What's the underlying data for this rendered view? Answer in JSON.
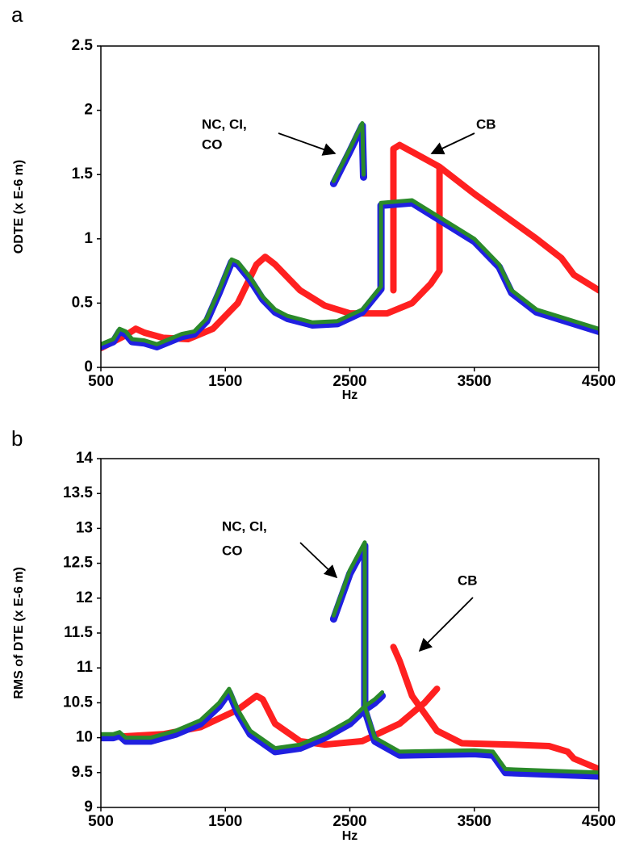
{
  "chart_data": [
    {
      "type": "line",
      "panel": "a",
      "ylabel": "ODTE (x E-6 m)",
      "xlabel": "Hz",
      "xlim": [
        500,
        4500
      ],
      "xticks": [
        500,
        1500,
        2500,
        3500,
        4500
      ],
      "ylim": [
        0,
        2.5
      ],
      "yticks": [
        0,
        0.5,
        1,
        1.5,
        2,
        2.5
      ],
      "annotations": [
        "NC, CI,",
        "CO",
        "CB"
      ],
      "series": [
        {
          "color": "#ff2020",
          "x": [
            500,
            700,
            780,
            850,
            1000,
            1200,
            1400,
            1600,
            1750,
            1820,
            1900,
            2100,
            2300,
            2500,
            2800,
            3000,
            3150,
            3220,
            3220,
            3500,
            4000,
            4200,
            4300,
            4500,
            null,
            2850,
            2850,
            2900,
            3220
          ],
          "values": [
            0.15,
            0.25,
            0.3,
            0.27,
            0.23,
            0.22,
            0.3,
            0.5,
            0.8,
            0.86,
            0.8,
            0.6,
            0.48,
            0.42,
            0.42,
            0.5,
            0.65,
            0.75,
            1.56,
            1.35,
            1.0,
            0.85,
            0.72,
            0.6,
            null,
            0.6,
            1.7,
            1.73,
            1.56
          ]
        },
        {
          "color": "#2020e0",
          "x": [
            500,
            600,
            650,
            700,
            750,
            850,
            950,
            1050,
            1150,
            1250,
            1350,
            1450,
            1550,
            1600,
            1700,
            1800,
            1900,
            2000,
            2200,
            2400,
            2600,
            2750,
            2750,
            3000,
            3500,
            3700,
            3800,
            4000,
            4500,
            null,
            2370,
            2500,
            2600,
            2610
          ],
          "values": [
            0.16,
            0.2,
            0.28,
            0.26,
            0.2,
            0.19,
            0.16,
            0.2,
            0.24,
            0.26,
            0.36,
            0.58,
            0.82,
            0.8,
            0.68,
            0.53,
            0.43,
            0.38,
            0.33,
            0.34,
            0.43,
            0.61,
            1.26,
            1.28,
            0.98,
            0.78,
            0.58,
            0.43,
            0.28,
            null,
            1.43,
            1.68,
            1.88,
            1.48
          ]
        },
        {
          "color": "#2a8a2a",
          "x": [
            500,
            600,
            650,
            700,
            750,
            850,
            950,
            1050,
            1150,
            1250,
            1350,
            1450,
            1550,
            1600,
            1700,
            1800,
            1900,
            2000,
            2200,
            2400,
            2600,
            2750,
            2750,
            3000,
            3500,
            3700,
            3800,
            4000,
            4500,
            null,
            2370,
            2500,
            2600,
            2610
          ],
          "values": [
            0.18,
            0.22,
            0.3,
            0.28,
            0.22,
            0.21,
            0.18,
            0.22,
            0.26,
            0.28,
            0.38,
            0.6,
            0.84,
            0.82,
            0.7,
            0.55,
            0.45,
            0.4,
            0.35,
            0.36,
            0.45,
            0.63,
            1.28,
            1.3,
            1.0,
            0.8,
            0.6,
            0.45,
            0.3,
            null,
            1.45,
            1.7,
            1.9,
            1.5
          ]
        }
      ]
    },
    {
      "type": "line",
      "panel": "b",
      "ylabel": "RMS of DTE (x E-6 m)",
      "xlabel": "Hz",
      "xlim": [
        500,
        4500
      ],
      "xticks": [
        500,
        1500,
        2500,
        3500,
        4500
      ],
      "ylim": [
        9,
        14
      ],
      "yticks": [
        9,
        9.5,
        10,
        10.5,
        11,
        11.5,
        12,
        12.5,
        13,
        13.5,
        14
      ],
      "annotations": [
        "NC, CI,",
        "CO",
        "CB"
      ],
      "series": [
        {
          "color": "#ff2020",
          "x": [
            500,
            700,
            1000,
            1300,
            1600,
            1750,
            1800,
            1900,
            2100,
            2300,
            2600,
            2900,
            3100,
            3200,
            null,
            2850,
            2900,
            3000,
            3200,
            3400,
            3800,
            4100,
            4250,
            4300,
            4500
          ],
          "values": [
            10.0,
            10.02,
            10.05,
            10.15,
            10.4,
            10.6,
            10.55,
            10.2,
            9.95,
            9.9,
            9.95,
            10.2,
            10.5,
            10.7,
            null,
            11.3,
            11.1,
            10.6,
            10.1,
            9.92,
            9.9,
            9.88,
            9.8,
            9.7,
            9.55
          ]
        },
        {
          "color": "#2020e0",
          "x": [
            500,
            600,
            650,
            700,
            900,
            1100,
            1300,
            1450,
            1530,
            1600,
            1700,
            1900,
            2100,
            2300,
            2500,
            2620,
            2700,
            2760,
            null,
            2370,
            2500,
            2620,
            2620,
            2700,
            2900,
            3500,
            3650,
            3750,
            4500
          ],
          "values": [
            10.0,
            10.0,
            10.03,
            9.95,
            9.95,
            10.05,
            10.2,
            10.45,
            10.65,
            10.35,
            10.05,
            9.8,
            9.85,
            10.0,
            10.2,
            10.4,
            10.5,
            10.6,
            null,
            11.7,
            12.35,
            12.75,
            10.4,
            9.95,
            9.75,
            9.77,
            9.75,
            9.5,
            9.45
          ]
        },
        {
          "color": "#2a8a2a",
          "x": [
            500,
            600,
            650,
            700,
            900,
            1100,
            1300,
            1450,
            1530,
            1600,
            1700,
            1900,
            2100,
            2300,
            2500,
            2620,
            2700,
            2760,
            null,
            2370,
            2500,
            2620,
            2620,
            2700,
            2900,
            3500,
            3650,
            3750,
            4500
          ],
          "values": [
            10.05,
            10.05,
            10.08,
            10.0,
            10.0,
            10.1,
            10.25,
            10.5,
            10.7,
            10.4,
            10.1,
            9.85,
            9.9,
            10.05,
            10.25,
            10.45,
            10.55,
            10.65,
            null,
            11.75,
            12.4,
            12.8,
            10.45,
            10.0,
            9.8,
            9.82,
            9.8,
            9.55,
            9.5
          ]
        }
      ]
    }
  ]
}
